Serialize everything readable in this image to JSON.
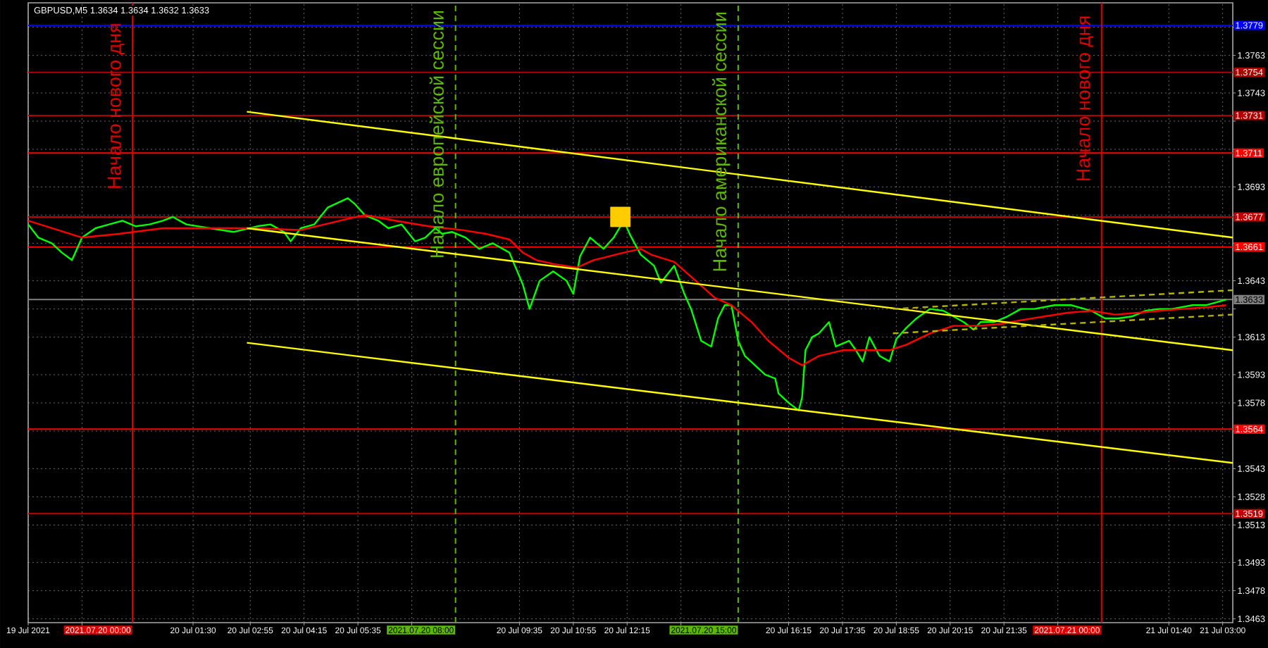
{
  "chart_data": {
    "type": "line",
    "title": "GBPUSD,M5  1.3634 1.3634 1.3632 1.3633",
    "xlim": [
      "2021-07-19T21:25",
      "2021-07-21T03:15"
    ],
    "ylim": [
      1.3461,
      1.3791
    ],
    "xticks": [
      {
        "value": "2021-07-19T21:25",
        "label": "19 Jul 2021"
      },
      {
        "value": "2021-07-19T22:45",
        "label": null
      },
      {
        "value": "2021-07-20T01:30",
        "label": "20 Jul 01:30"
      },
      {
        "value": "2021-07-20T02:55",
        "label": "20 Jul 02:55"
      },
      {
        "value": "2021-07-20T04:15",
        "label": "20 Jul 04:15"
      },
      {
        "value": "2021-07-20T05:35",
        "label": "20 Jul 05:35"
      },
      {
        "value": "2021-07-20T06:55",
        "label": null
      },
      {
        "value": "2021-07-20T09:35",
        "label": "20 Jul 09:35"
      },
      {
        "value": "2021-07-20T10:55",
        "label": "20 Jul 10:55"
      },
      {
        "value": "2021-07-20T12:15",
        "label": "20 Jul 12:15"
      },
      {
        "value": "2021-07-20T13:35",
        "label": null
      },
      {
        "value": "2021-07-20T16:15",
        "label": "20 Jul 16:15"
      },
      {
        "value": "2021-07-20T17:35",
        "label": "20 Jul 17:35"
      },
      {
        "value": "2021-07-20T18:55",
        "label": "20 Jul 18:55"
      },
      {
        "value": "2021-07-20T20:15",
        "label": "20 Jul 20:15"
      },
      {
        "value": "2021-07-20T21:35",
        "label": "20 Jul 21:35"
      },
      {
        "value": "2021-07-20T22:55",
        "label": null
      },
      {
        "value": "2021-07-21T01:40",
        "label": "21 Jul 01:40"
      },
      {
        "value": "2021-07-21T03:00",
        "label": "21 Jul 03:00"
      }
    ],
    "yticks": [
      1.3463,
      1.3478,
      1.3493,
      1.3513,
      1.3528,
      1.3543,
      {
        "value": 1.3563,
        "label": null
      },
      1.3578,
      1.3593,
      1.3613,
      {
        "value": 1.3628,
        "label": null
      },
      1.3643,
      {
        "value": 1.3663,
        "label": null
      },
      {
        "value": 1.3678,
        "label": null
      },
      1.3693,
      {
        "value": 1.3713,
        "label": null
      },
      {
        "value": 1.3728,
        "label": null
      },
      1.3743,
      1.3763,
      {
        "value": 1.3778,
        "label": null
      }
    ],
    "grid": true,
    "series": [
      {
        "type": "line",
        "color": "#00ff00",
        "x": [
          "2021-07-19T21:25",
          "2021-07-19T21:40",
          "2021-07-19T22:00",
          "2021-07-19T22:15",
          "2021-07-19T22:30",
          "2021-07-19T22:45",
          "2021-07-19T23:05",
          "2021-07-19T23:25",
          "2021-07-19T23:45",
          "2021-07-20T00:05",
          "2021-07-20T00:25",
          "2021-07-20T00:45",
          "2021-07-20T01:00",
          "2021-07-20T01:20",
          "2021-07-20T01:55",
          "2021-07-20T02:30",
          "2021-07-20T03:05",
          "2021-07-20T03:25",
          "2021-07-20T03:45",
          "2021-07-20T03:55",
          "2021-07-20T04:10",
          "2021-07-20T04:30",
          "2021-07-20T04:50",
          "2021-07-20T05:20",
          "2021-07-20T05:30",
          "2021-07-20T05:45",
          "2021-07-20T06:05",
          "2021-07-20T06:20",
          "2021-07-20T06:40",
          "2021-07-20T07:00",
          "2021-07-20T07:15",
          "2021-07-20T07:30",
          "2021-07-20T07:40",
          "2021-07-20T07:55",
          "2021-07-20T08:15",
          "2021-07-20T08:35",
          "2021-07-20T08:55",
          "2021-07-20T09:20",
          "2021-07-20T09:40",
          "2021-07-20T09:50",
          "2021-07-20T10:05",
          "2021-07-20T10:25",
          "2021-07-20T10:45",
          "2021-07-20T10:55",
          "2021-07-20T11:05",
          "2021-07-20T11:20",
          "2021-07-20T11:40",
          "2021-07-20T11:55",
          "2021-07-20T12:10",
          "2021-07-20T12:20",
          "2021-07-20T12:35",
          "2021-07-20T12:55",
          "2021-07-20T13:05",
          "2021-07-20T13:25",
          "2021-07-20T13:40",
          "2021-07-20T13:50",
          "2021-07-20T14:05",
          "2021-07-20T14:20",
          "2021-07-20T14:30",
          "2021-07-20T14:40",
          "2021-07-20T14:50",
          "2021-07-20T15:00",
          "2021-07-20T15:10",
          "2021-07-20T15:25",
          "2021-07-20T15:40",
          "2021-07-20T15:55",
          "2021-07-20T16:00",
          "2021-07-20T16:15",
          "2021-07-20T16:30",
          "2021-07-20T16:35",
          "2021-07-20T16:40",
          "2021-07-20T16:50",
          "2021-07-20T17:00",
          "2021-07-20T17:15",
          "2021-07-20T17:25",
          "2021-07-20T17:45",
          "2021-07-20T17:55",
          "2021-07-20T18:05",
          "2021-07-20T18:15",
          "2021-07-20T18:30",
          "2021-07-20T18:45",
          "2021-07-20T18:55",
          "2021-07-20T19:10",
          "2021-07-20T19:25",
          "2021-07-20T19:45",
          "2021-07-20T20:05",
          "2021-07-20T20:20",
          "2021-07-20T20:35",
          "2021-07-20T20:50",
          "2021-07-20T21:00",
          "2021-07-20T21:20",
          "2021-07-20T21:40",
          "2021-07-20T22:00",
          "2021-07-20T22:20",
          "2021-07-20T22:50",
          "2021-07-20T23:15",
          "2021-07-20T23:45",
          "2021-07-21T00:05",
          "2021-07-21T00:25",
          "2021-07-21T00:45",
          "2021-07-21T01:05",
          "2021-07-21T01:25",
          "2021-07-21T01:45",
          "2021-07-21T02:15",
          "2021-07-21T02:35",
          "2021-07-21T03:05"
        ],
        "values": [
          1.3673,
          1.3666,
          1.3663,
          1.3658,
          1.3654,
          1.3666,
          1.3671,
          1.3673,
          1.3675,
          1.3672,
          1.3673,
          1.3675,
          1.3677,
          1.3673,
          1.3671,
          1.3669,
          1.3672,
          1.3673,
          1.3669,
          1.3664,
          1.3671,
          1.3673,
          1.3682,
          1.3687,
          1.3684,
          1.3678,
          1.3675,
          1.3671,
          1.3673,
          1.3664,
          1.3666,
          1.3671,
          1.3668,
          1.3669,
          1.3666,
          1.366,
          1.3663,
          1.3658,
          1.3641,
          1.3628,
          1.3643,
          1.3648,
          1.3643,
          1.3636,
          1.3656,
          1.3666,
          1.366,
          1.3666,
          1.3675,
          1.3667,
          1.3657,
          1.3651,
          1.3642,
          1.3651,
          1.3636,
          1.3628,
          1.3611,
          1.3608,
          1.3623,
          1.363,
          1.363,
          1.3611,
          1.3603,
          1.3598,
          1.3593,
          1.3591,
          1.3583,
          1.3578,
          1.3574,
          1.3581,
          1.3606,
          1.3613,
          1.3615,
          1.3621,
          1.3608,
          1.3611,
          1.3606,
          1.36,
          1.3613,
          1.3603,
          1.36,
          1.3612,
          1.3618,
          1.3623,
          1.3628,
          1.3627,
          1.3624,
          1.3621,
          1.3617,
          1.3621,
          1.3621,
          1.3624,
          1.3628,
          1.3628,
          1.363,
          1.363,
          1.3627,
          1.3623,
          1.3623,
          1.3624,
          1.3627,
          1.3628,
          1.3628,
          1.363,
          1.363,
          1.3633
        ]
      },
      {
        "type": "line",
        "color": "#ff0000",
        "x": [
          "2021-07-19T21:25",
          "2021-07-19T22:00",
          "2021-07-19T22:45",
          "2021-07-19T23:40",
          "2021-07-20T00:45",
          "2021-07-20T01:55",
          "2021-07-20T03:05",
          "2021-07-20T04:10",
          "2021-07-20T04:45",
          "2021-07-20T05:20",
          "2021-07-20T05:45",
          "2021-07-20T06:30",
          "2021-07-20T07:20",
          "2021-07-20T08:10",
          "2021-07-20T08:45",
          "2021-07-20T09:20",
          "2021-07-20T09:40",
          "2021-07-20T10:00",
          "2021-07-20T10:25",
          "2021-07-20T11:00",
          "2021-07-20T11:25",
          "2021-07-20T12:10",
          "2021-07-20T12:35",
          "2021-07-20T12:50",
          "2021-07-20T13:25",
          "2021-07-20T14:00",
          "2021-07-20T14:25",
          "2021-07-20T14:50",
          "2021-07-20T15:20",
          "2021-07-20T15:45",
          "2021-07-20T16:15",
          "2021-07-20T16:35",
          "2021-07-20T17:00",
          "2021-07-20T17:35",
          "2021-07-20T18:10",
          "2021-07-20T18:45",
          "2021-07-20T19:10",
          "2021-07-20T19:45",
          "2021-07-20T20:20",
          "2021-07-20T20:55",
          "2021-07-20T21:30",
          "2021-07-20T22:00",
          "2021-07-20T22:35",
          "2021-07-20T23:10",
          "2021-07-20T23:45",
          "2021-07-21T00:20",
          "2021-07-21T00:55",
          "2021-07-21T01:25",
          "2021-07-21T02:00",
          "2021-07-21T02:40",
          "2021-07-21T03:05"
        ],
        "values": [
          1.3675,
          1.3671,
          1.3666,
          1.3668,
          1.3671,
          1.3671,
          1.3671,
          1.367,
          1.3673,
          1.3676,
          1.3678,
          1.3675,
          1.3672,
          1.367,
          1.3668,
          1.3665,
          1.3658,
          1.3654,
          1.3652,
          1.365,
          1.3654,
          1.3658,
          1.366,
          1.3657,
          1.3653,
          1.3642,
          1.3634,
          1.363,
          1.3621,
          1.3611,
          1.3602,
          1.3598,
          1.3603,
          1.3606,
          1.3606,
          1.3606,
          1.3609,
          1.3615,
          1.3619,
          1.3619,
          1.362,
          1.3622,
          1.3624,
          1.3626,
          1.3627,
          1.3625,
          1.3626,
          1.3627,
          1.3628,
          1.3629,
          1.363
        ]
      },
      {
        "type": "line",
        "color": "#ffff00",
        "x": [
          "2021-07-20T02:50",
          "2021-07-21T03:15"
        ],
        "values": [
          1.3733,
          1.3666
        ]
      },
      {
        "type": "line",
        "color": "#ffff00",
        "x": [
          "2021-07-20T02:50",
          "2021-07-21T03:15"
        ],
        "values": [
          1.3671,
          1.3606
        ]
      },
      {
        "type": "line",
        "color": "#ffff00",
        "x": [
          "2021-07-20T02:50",
          "2021-07-21T03:15"
        ],
        "values": [
          1.361,
          1.3546
        ]
      },
      {
        "type": "line",
        "color": "#b4b400",
        "line_style": "dashed",
        "x": [
          "2021-07-20T18:50",
          "2021-07-21T03:15"
        ],
        "values": [
          1.3628,
          1.3638
        ]
      },
      {
        "type": "line",
        "color": "#b4b400",
        "line_style": "dashed",
        "x": [
          "2021-07-20T18:50",
          "2021-07-21T03:15"
        ],
        "values": [
          1.3615,
          1.3625
        ]
      },
      {
        "type": "scatter",
        "marker": "square",
        "color": "#ffcc00",
        "x": [
          "2021-07-20T12:05"
        ],
        "values": [
          1.3677
        ]
      }
    ],
    "ref_lines": [
      {
        "axis": "y",
        "value": 1.3779,
        "label": "1.3779",
        "color": "#0000ff"
      },
      {
        "axis": "y",
        "value": 1.3754,
        "label": "1.3754",
        "color": "#b00000"
      },
      {
        "axis": "y",
        "value": 1.3731,
        "label": "1.3731",
        "color": "#b00000"
      },
      {
        "axis": "y",
        "value": 1.3711,
        "label": "1.3711",
        "color": "#ff0000"
      },
      {
        "axis": "y",
        "value": 1.3677,
        "label": "1.3677",
        "color": "#c00000"
      },
      {
        "axis": "y",
        "value": 1.3661,
        "label": "1.3661",
        "color": "#ff0000"
      },
      {
        "axis": "y",
        "value": 1.3633,
        "label": "1.3633",
        "color": "#808080"
      },
      {
        "axis": "y",
        "value": 1.3564,
        "label": "1.3564",
        "color": "#ff0000"
      },
      {
        "axis": "y",
        "value": 1.3519,
        "label": "1.3519",
        "color": "#c00000"
      },
      {
        "axis": "x",
        "value": "2021-07-20T00:00",
        "label": "2021.07.20 00:00",
        "color": "#e00000"
      },
      {
        "axis": "x",
        "value": "2021-07-20T08:00",
        "label": "2021.07.20 08:00",
        "color": "#5cb800",
        "line_style": "dashed"
      },
      {
        "axis": "x",
        "value": "2021-07-20T15:00",
        "label": "2021.07.20 15:00",
        "color": "#5cb800",
        "line_style": "dashed"
      },
      {
        "axis": "x",
        "value": "2021-07-21T00:00",
        "label": "2021.07.21 00:00",
        "color": "#e00000"
      }
    ],
    "annotations": [
      {
        "text": "Начало нового дня",
        "x": "2021-07-20T00:00",
        "y": 1.3736
      },
      {
        "text": "Начало европейской сессии",
        "x": "2021-07-20T08:00",
        "y": 1.3721
      },
      {
        "text": "Начало американской сессии",
        "x": "2021-07-20T15:00",
        "y": 1.3717
      },
      {
        "text": "Начало нового дня",
        "x": "2021-07-21T00:00",
        "y": 1.374
      }
    ]
  }
}
